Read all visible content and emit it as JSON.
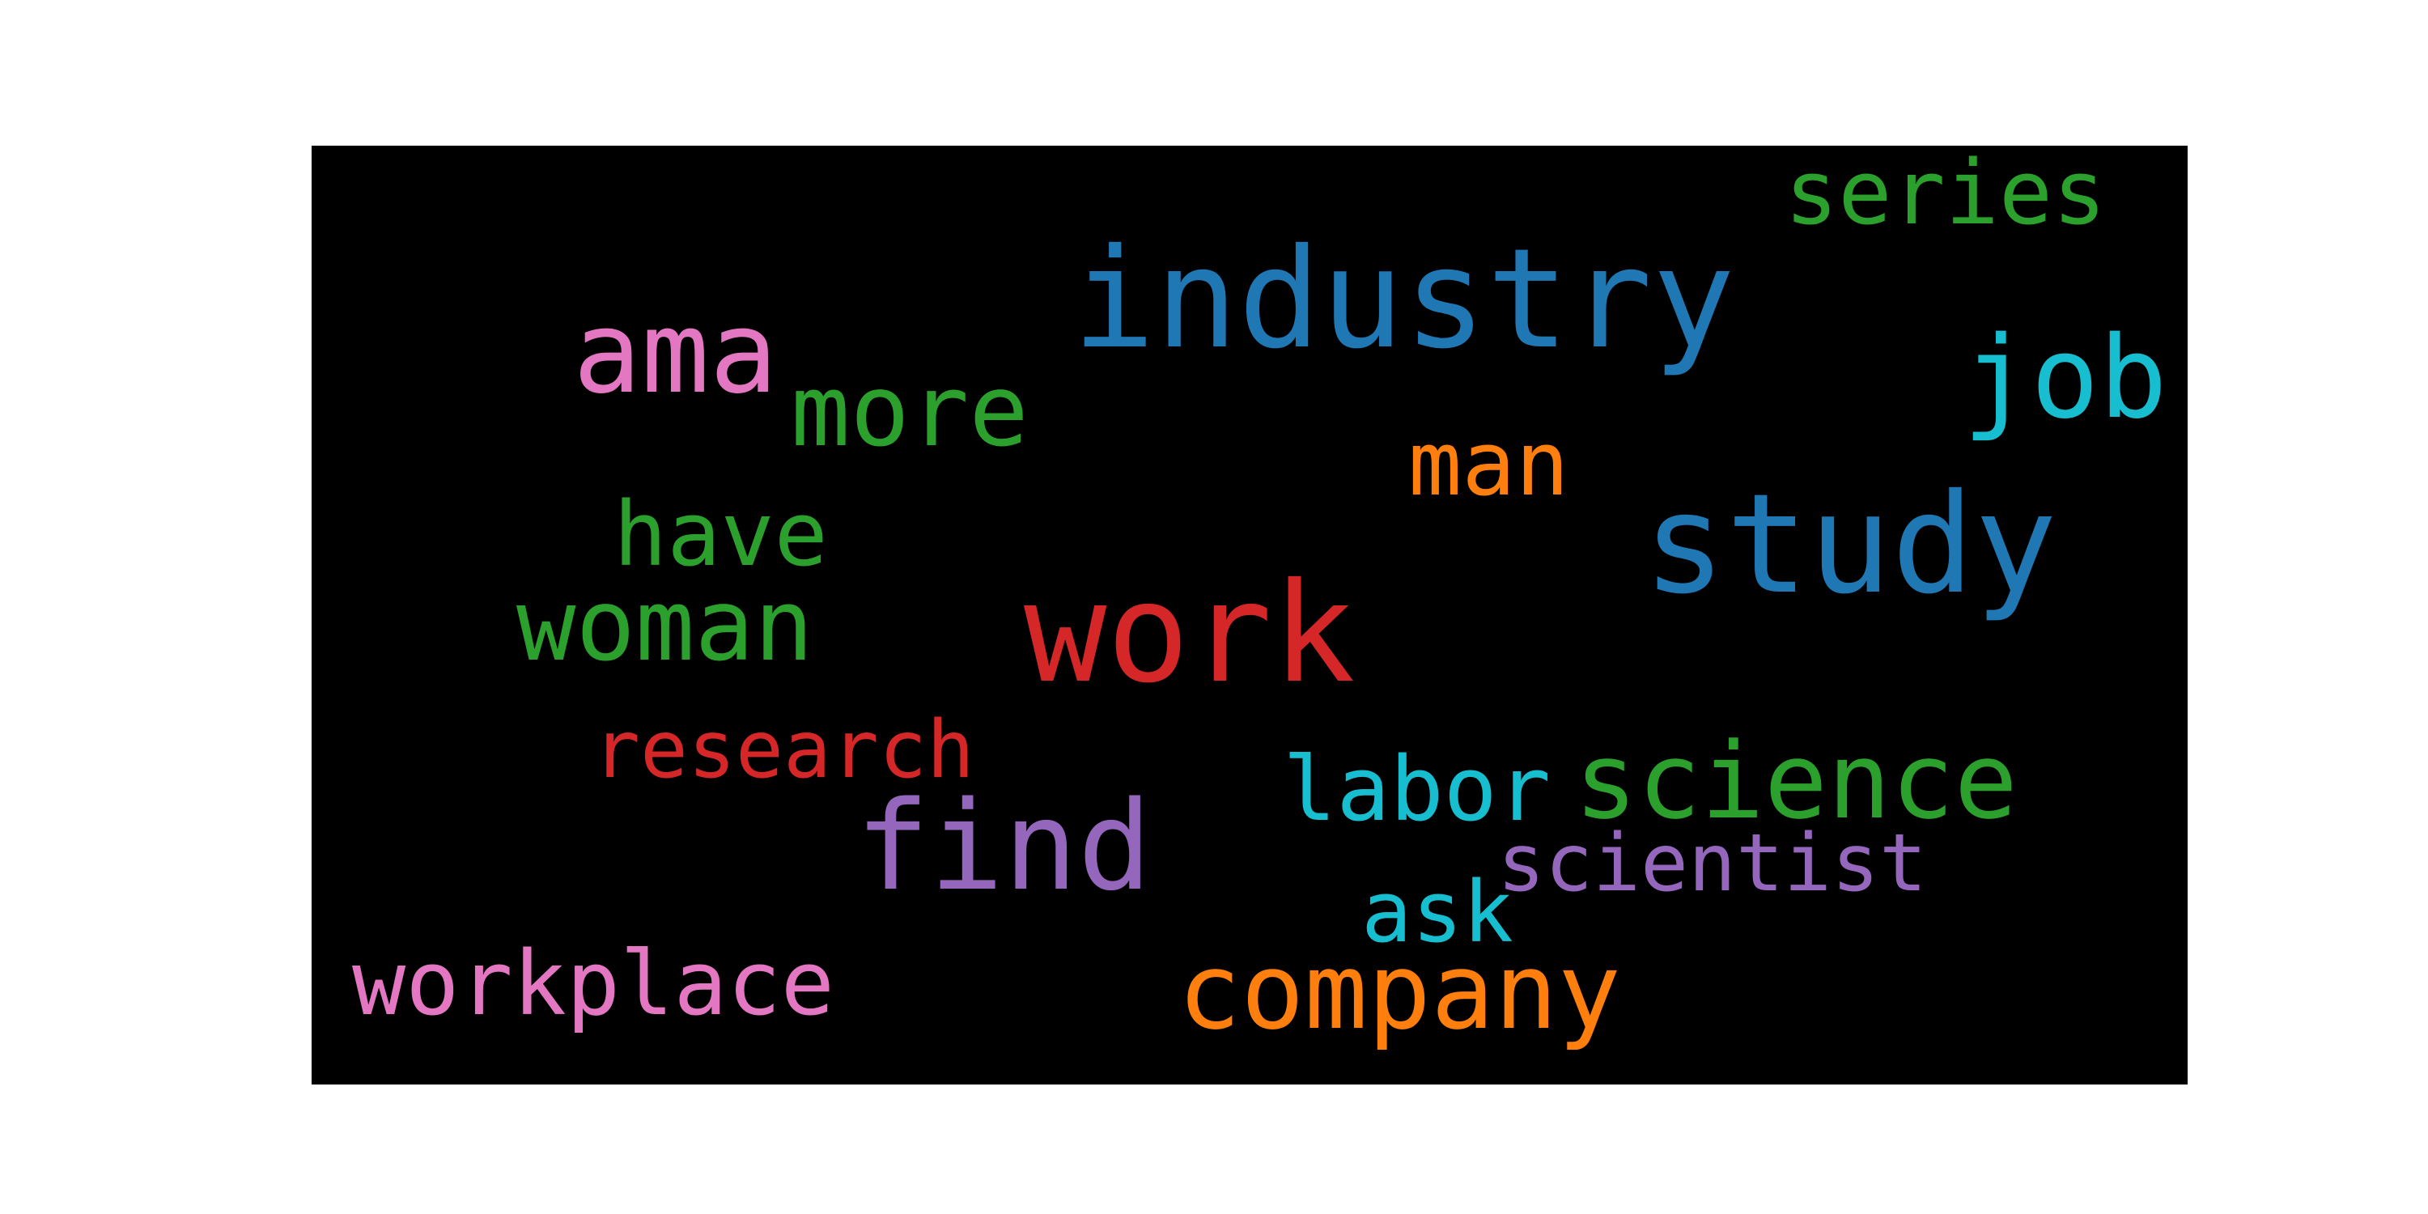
{
  "words": [
    {
      "text": "industry",
      "color": "#1f77b4"
    },
    {
      "text": "study",
      "color": "#1f77b4"
    },
    {
      "text": "work",
      "color": "#d62728"
    },
    {
      "text": "job",
      "color": "#17becf"
    },
    {
      "text": "ama",
      "color": "#e377c2"
    },
    {
      "text": "more",
      "color": "#2ca02c"
    },
    {
      "text": "series",
      "color": "#2ca02c"
    },
    {
      "text": "man",
      "color": "#ff7f0e"
    },
    {
      "text": "have",
      "color": "#2ca02c"
    },
    {
      "text": "woman",
      "color": "#2ca02c"
    },
    {
      "text": "research",
      "color": "#d62728"
    },
    {
      "text": "find",
      "color": "#9467bd"
    },
    {
      "text": "labor",
      "color": "#17becf"
    },
    {
      "text": "science",
      "color": "#2ca02c"
    },
    {
      "text": "scientist",
      "color": "#9467bd"
    },
    {
      "text": "ask",
      "color": "#17becf"
    },
    {
      "text": "workplace",
      "color": "#e377c2"
    },
    {
      "text": "company",
      "color": "#ff7f0e"
    }
  ]
}
